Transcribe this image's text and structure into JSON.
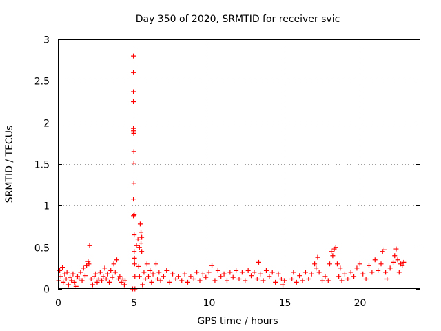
{
  "chart_data": {
    "type": "scatter",
    "title": "Day 350 of 2020, SRMTID for receiver svic",
    "xlabel": "GPS time / hours",
    "ylabel": "SRMTID / TECUs",
    "xlim": [
      0,
      24
    ],
    "ylim": [
      0,
      3
    ],
    "grid": true,
    "marker": "+",
    "color": "#ff0000",
    "xticks": [
      0,
      5,
      10,
      15,
      20
    ],
    "xtick_labels": [
      "0",
      "5",
      "10",
      "15",
      "20"
    ],
    "yticks": [
      0,
      0.5,
      1,
      1.5,
      2,
      2.5,
      3
    ],
    "ytick_labels": [
      "0",
      "0.5",
      "1",
      "1.5",
      "2",
      "2.5",
      "3"
    ],
    "series": [
      {
        "name": "SRMTID",
        "points": [
          [
            0.05,
            0.1
          ],
          [
            0.12,
            0.22
          ],
          [
            0.2,
            0.15
          ],
          [
            0.3,
            0.26
          ],
          [
            0.35,
            0.08
          ],
          [
            0.45,
            0.18
          ],
          [
            0.55,
            0.12
          ],
          [
            0.6,
            0.2
          ],
          [
            0.7,
            0.05
          ],
          [
            0.8,
            0.14
          ],
          [
            0.9,
            0.1
          ],
          [
            1.0,
            0.18
          ],
          [
            1.1,
            0.08
          ],
          [
            1.2,
            0.03
          ],
          [
            1.3,
            0.15
          ],
          [
            1.4,
            0.12
          ],
          [
            1.5,
            0.2
          ],
          [
            1.6,
            0.1
          ],
          [
            1.7,
            0.25
          ],
          [
            1.8,
            0.16
          ],
          [
            1.9,
            0.28
          ],
          [
            2.0,
            0.33
          ],
          [
            2.05,
            0.3
          ],
          [
            2.1,
            0.52
          ],
          [
            2.2,
            0.12
          ],
          [
            2.3,
            0.05
          ],
          [
            2.4,
            0.15
          ],
          [
            2.5,
            0.18
          ],
          [
            2.6,
            0.08
          ],
          [
            2.7,
            0.12
          ],
          [
            2.8,
            0.2
          ],
          [
            2.9,
            0.1
          ],
          [
            3.0,
            0.15
          ],
          [
            3.1,
            0.25
          ],
          [
            3.2,
            0.12
          ],
          [
            3.3,
            0.18
          ],
          [
            3.4,
            0.08
          ],
          [
            3.5,
            0.22
          ],
          [
            3.6,
            0.14
          ],
          [
            3.7,
            0.3
          ],
          [
            3.8,
            0.2
          ],
          [
            3.9,
            0.35
          ],
          [
            4.0,
            0.12
          ],
          [
            4.1,
            0.15
          ],
          [
            4.2,
            0.08
          ],
          [
            4.3,
            0.12
          ],
          [
            4.4,
            0.05
          ],
          [
            4.45,
            0.1
          ],
          [
            4.95,
            0.0
          ],
          [
            5.0,
            2.8
          ],
          [
            5.0,
            2.6
          ],
          [
            5.0,
            2.37
          ],
          [
            5.0,
            2.25
          ],
          [
            5.0,
            1.93
          ],
          [
            5.0,
            1.9
          ],
          [
            5.02,
            1.87
          ],
          [
            5.03,
            1.65
          ],
          [
            5.03,
            1.51
          ],
          [
            5.03,
            1.27
          ],
          [
            5.0,
            1.08
          ],
          [
            5.0,
            0.88
          ],
          [
            5.05,
            0.89
          ],
          [
            5.05,
            0.65
          ],
          [
            5.05,
            0.45
          ],
          [
            5.07,
            0.37
          ],
          [
            5.08,
            0.3
          ],
          [
            5.1,
            0.0
          ],
          [
            5.1,
            0.15
          ],
          [
            5.2,
            0.52
          ],
          [
            5.3,
            0.6
          ],
          [
            5.4,
            0.5
          ],
          [
            5.45,
            0.78
          ],
          [
            5.5,
            0.68
          ],
          [
            5.5,
            0.55
          ],
          [
            5.55,
            0.62
          ],
          [
            5.55,
            0.45
          ],
          [
            5.4,
            0.15
          ],
          [
            5.35,
            0.27
          ],
          [
            5.6,
            0.05
          ],
          [
            5.7,
            0.2
          ],
          [
            5.8,
            0.12
          ],
          [
            5.9,
            0.3
          ],
          [
            6.0,
            0.15
          ],
          [
            6.1,
            0.22
          ],
          [
            6.2,
            0.08
          ],
          [
            6.3,
            0.18
          ],
          [
            6.5,
            0.3
          ],
          [
            6.6,
            0.12
          ],
          [
            6.7,
            0.2
          ],
          [
            6.8,
            0.1
          ],
          [
            7.0,
            0.15
          ],
          [
            7.2,
            0.22
          ],
          [
            7.4,
            0.08
          ],
          [
            7.6,
            0.18
          ],
          [
            7.8,
            0.12
          ],
          [
            8.0,
            0.15
          ],
          [
            8.2,
            0.1
          ],
          [
            8.4,
            0.18
          ],
          [
            8.6,
            0.08
          ],
          [
            8.8,
            0.15
          ],
          [
            9.0,
            0.12
          ],
          [
            9.2,
            0.2
          ],
          [
            9.4,
            0.1
          ],
          [
            9.6,
            0.18
          ],
          [
            9.8,
            0.14
          ],
          [
            10.0,
            0.2
          ],
          [
            10.2,
            0.28
          ],
          [
            10.4,
            0.1
          ],
          [
            10.6,
            0.22
          ],
          [
            10.8,
            0.15
          ],
          [
            11.0,
            0.18
          ],
          [
            11.2,
            0.1
          ],
          [
            11.4,
            0.2
          ],
          [
            11.6,
            0.14
          ],
          [
            11.8,
            0.22
          ],
          [
            12.0,
            0.12
          ],
          [
            12.2,
            0.2
          ],
          [
            12.4,
            0.1
          ],
          [
            12.6,
            0.22
          ],
          [
            12.8,
            0.16
          ],
          [
            13.0,
            0.2
          ],
          [
            13.2,
            0.12
          ],
          [
            13.3,
            0.32
          ],
          [
            13.4,
            0.18
          ],
          [
            13.6,
            0.1
          ],
          [
            13.8,
            0.22
          ],
          [
            14.0,
            0.15
          ],
          [
            14.2,
            0.2
          ],
          [
            14.4,
            0.08
          ],
          [
            14.6,
            0.18
          ],
          [
            14.8,
            0.12
          ],
          [
            14.9,
            0.05
          ],
          [
            15.0,
            0.1
          ],
          [
            15.5,
            0.12
          ],
          [
            15.6,
            0.2
          ],
          [
            15.8,
            0.08
          ],
          [
            16.0,
            0.16
          ],
          [
            16.2,
            0.1
          ],
          [
            16.4,
            0.2
          ],
          [
            16.6,
            0.12
          ],
          [
            16.8,
            0.18
          ],
          [
            17.0,
            0.3
          ],
          [
            17.1,
            0.25
          ],
          [
            17.2,
            0.38
          ],
          [
            17.3,
            0.2
          ],
          [
            17.5,
            0.1
          ],
          [
            17.7,
            0.15
          ],
          [
            17.9,
            0.1
          ],
          [
            18.0,
            0.3
          ],
          [
            18.1,
            0.45
          ],
          [
            18.2,
            0.4
          ],
          [
            18.3,
            0.48
          ],
          [
            18.4,
            0.5
          ],
          [
            18.5,
            0.3
          ],
          [
            18.6,
            0.15
          ],
          [
            18.7,
            0.25
          ],
          [
            18.8,
            0.1
          ],
          [
            19.0,
            0.18
          ],
          [
            19.2,
            0.12
          ],
          [
            19.4,
            0.2
          ],
          [
            19.6,
            0.15
          ],
          [
            19.8,
            0.25
          ],
          [
            20.0,
            0.3
          ],
          [
            20.2,
            0.18
          ],
          [
            20.4,
            0.12
          ],
          [
            20.6,
            0.28
          ],
          [
            20.8,
            0.2
          ],
          [
            21.0,
            0.35
          ],
          [
            21.2,
            0.22
          ],
          [
            21.4,
            0.3
          ],
          [
            21.5,
            0.45
          ],
          [
            21.6,
            0.47
          ],
          [
            21.7,
            0.2
          ],
          [
            21.8,
            0.12
          ],
          [
            22.0,
            0.25
          ],
          [
            22.2,
            0.32
          ],
          [
            22.3,
            0.4
          ],
          [
            22.4,
            0.48
          ],
          [
            22.5,
            0.35
          ],
          [
            22.6,
            0.2
          ],
          [
            22.7,
            0.3
          ],
          [
            22.8,
            0.28
          ],
          [
            22.9,
            0.32
          ]
        ]
      }
    ]
  }
}
